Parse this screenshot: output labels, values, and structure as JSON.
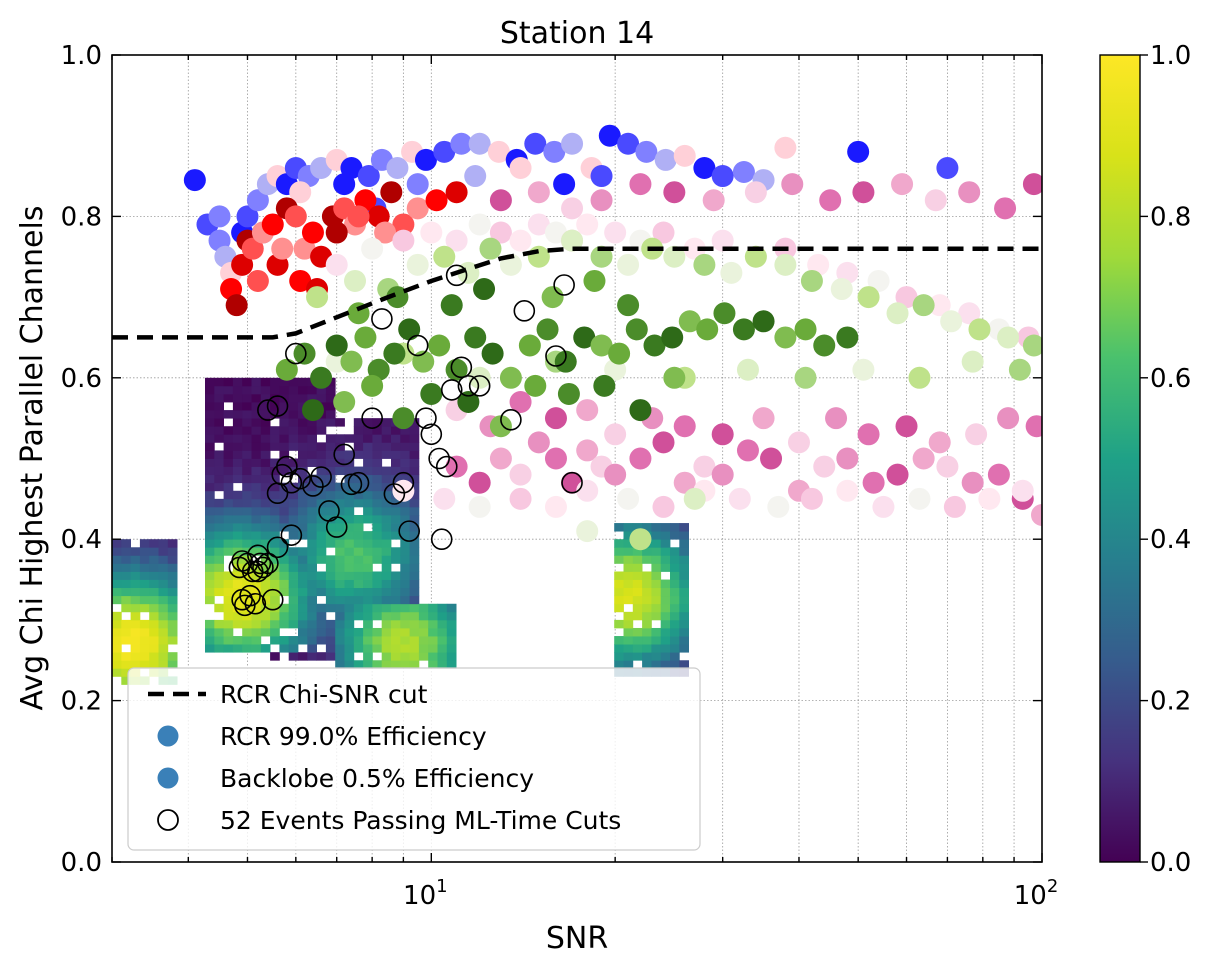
{
  "chart_data": {
    "type": "scatter",
    "title": "Station 14",
    "xlabel": "SNR",
    "ylabel": "Avg Chi Highest Parallel Channels",
    "x_scale": "log",
    "xlim": [
      3,
      100
    ],
    "ylim": [
      0.0,
      1.0
    ],
    "x_tick_labels": [
      {
        "value": 10,
        "base": "10",
        "exp": "1"
      },
      {
        "value": 100,
        "base": "10",
        "exp": "2"
      }
    ],
    "y_ticks": [
      0.0,
      0.2,
      0.4,
      0.6,
      0.8,
      1.0
    ],
    "y_tick_labels": [
      "0.0",
      "0.2",
      "0.4",
      "0.6",
      "0.8",
      "1.0"
    ],
    "grid": true,
    "colorbar": {
      "colormap": "viridis",
      "range": [
        0.0,
        1.0
      ],
      "ticks": [
        0.0,
        0.2,
        0.4,
        0.6,
        0.8,
        1.0
      ],
      "tick_labels": [
        "0.0",
        "0.2",
        "0.4",
        "0.6",
        "0.8",
        "1.0"
      ]
    },
    "legend": {
      "placement": "lower-left",
      "entries": [
        {
          "label": "RCR Chi-SNR cut",
          "marker": "dashed-line",
          "color": "#000000"
        },
        {
          "label": "RCR 99.0% Efficiency",
          "marker": "filled-circle",
          "color": "#3a80b8"
        },
        {
          "label": "Backlobe 0.5% Efficiency",
          "marker": "filled-circle",
          "color": "#3a80b8"
        },
        {
          "label": "52 Events Passing ML-Time Cuts",
          "marker": "open-circle",
          "color": "#000000"
        }
      ]
    },
    "cut_line": {
      "name": "RCR Chi-SNR cut",
      "x": [
        3,
        5.5,
        6.0,
        7.0,
        8.5,
        10,
        11.5,
        13,
        15,
        17,
        20,
        30,
        50,
        100
      ],
      "y": [
        0.65,
        0.65,
        0.655,
        0.675,
        0.7,
        0.72,
        0.735,
        0.748,
        0.757,
        0.76,
        0.76,
        0.76,
        0.76,
        0.76
      ]
    },
    "density_histogram": {
      "description_regions": [
        {
          "snr": [
            3.0,
            3.9
          ],
          "chi": [
            0.22,
            0.4
          ],
          "peak": [
            3.25,
            0.27
          ],
          "level": 0.95
        },
        {
          "snr": [
            4.3,
            7.0
          ],
          "chi": [
            0.26,
            0.6
          ],
          "peak": [
            4.9,
            0.33
          ],
          "level": 0.9
        },
        {
          "snr": [
            5.5,
            9.5
          ],
          "chi": [
            0.25,
            0.55
          ],
          "peak": [
            7.5,
            0.38
          ],
          "level": 0.6
        },
        {
          "snr": [
            7.0,
            11.0
          ],
          "chi": [
            0.24,
            0.32
          ],
          "peak": [
            9.0,
            0.27
          ],
          "level": 0.75
        },
        {
          "snr": [
            20.0,
            26.0
          ],
          "chi": [
            0.23,
            0.42
          ],
          "peak": [
            21.0,
            0.33
          ],
          "level": 0.85
        }
      ]
    },
    "series": [
      {
        "colors": [
          "#1a1aff",
          "#4a4aff",
          "#8080ff",
          "#b0b0f5",
          "#ffd0d8"
        ],
        "x": [
          4.1,
          4.3,
          4.5,
          4.6,
          4.7,
          4.9,
          5.0,
          5.2,
          5.4,
          5.6,
          5.8,
          6.0,
          6.3,
          6.6,
          7.0,
          7.4,
          7.9,
          8.3,
          8.8,
          9.3,
          9.8,
          10.5,
          11.2,
          12.0,
          12.9,
          13.8,
          14.8,
          15.9,
          17.0,
          18.3,
          19.6,
          21.0,
          22.5,
          24.2,
          26.0,
          28.0,
          30.0,
          32.5,
          35.0,
          38.0,
          50.0,
          70.0,
          4.5,
          5.3,
          6.1,
          7.2,
          8.1,
          9.5,
          11.8,
          14.0,
          16.5,
          19.0
        ],
        "y": [
          0.845,
          0.79,
          0.77,
          0.75,
          0.73,
          0.78,
          0.8,
          0.82,
          0.84,
          0.85,
          0.84,
          0.86,
          0.85,
          0.86,
          0.87,
          0.86,
          0.85,
          0.87,
          0.86,
          0.88,
          0.87,
          0.88,
          0.89,
          0.89,
          0.88,
          0.87,
          0.89,
          0.88,
          0.89,
          0.86,
          0.9,
          0.89,
          0.88,
          0.87,
          0.875,
          0.86,
          0.85,
          0.855,
          0.845,
          0.885,
          0.88,
          0.86,
          0.8,
          0.78,
          0.83,
          0.84,
          0.81,
          0.84,
          0.85,
          0.86,
          0.84,
          0.85
        ]
      },
      {
        "colors": [
          "#ff0000",
          "#dd0000",
          "#b00000",
          "#ff5050",
          "#ff9090"
        ],
        "x": [
          4.7,
          4.9,
          5.0,
          5.1,
          5.3,
          5.5,
          5.6,
          5.8,
          6.0,
          6.2,
          6.4,
          6.6,
          6.9,
          7.2,
          7.5,
          7.8,
          8.2,
          8.6,
          9.0,
          9.5,
          10.2,
          11.0,
          4.8,
          5.2,
          5.7,
          6.1,
          6.5,
          7.0,
          7.6,
          8.4
        ],
        "y": [
          0.71,
          0.74,
          0.77,
          0.76,
          0.78,
          0.79,
          0.74,
          0.81,
          0.8,
          0.76,
          0.78,
          0.75,
          0.8,
          0.81,
          0.79,
          0.82,
          0.8,
          0.83,
          0.79,
          0.81,
          0.82,
          0.83,
          0.69,
          0.72,
          0.76,
          0.72,
          0.71,
          0.78,
          0.8,
          0.78
        ]
      },
      {
        "colors": [
          "#e070b0",
          "#d0509a",
          "#f0a8cc",
          "#f8d0e4",
          "#e890c0"
        ],
        "x": [
          11,
          12,
          13,
          14,
          15,
          16,
          17,
          18,
          19,
          20,
          22,
          24,
          26,
          28,
          30,
          33,
          36,
          40,
          44,
          48,
          53,
          58,
          64,
          70,
          77,
          85,
          93,
          100,
          11,
          12.5,
          14,
          16,
          18,
          20,
          23,
          26,
          30,
          35,
          40,
          46,
          52,
          60,
          68,
          78,
          88,
          98,
          13,
          15,
          17,
          19,
          22,
          25,
          29,
          34,
          39,
          45,
          51,
          59,
          67,
          76,
          87,
          97
        ],
        "y": [
          0.49,
          0.47,
          0.5,
          0.48,
          0.52,
          0.5,
          0.47,
          0.51,
          0.49,
          0.48,
          0.5,
          0.52,
          0.47,
          0.49,
          0.48,
          0.51,
          0.5,
          0.46,
          0.49,
          0.5,
          0.47,
          0.48,
          0.5,
          0.49,
          0.47,
          0.48,
          0.45,
          0.43,
          0.56,
          0.54,
          0.57,
          0.55,
          0.56,
          0.53,
          0.55,
          0.54,
          0.53,
          0.55,
          0.52,
          0.55,
          0.53,
          0.54,
          0.52,
          0.53,
          0.55,
          0.54,
          0.82,
          0.83,
          0.81,
          0.82,
          0.84,
          0.83,
          0.82,
          0.83,
          0.84,
          0.82,
          0.83,
          0.84,
          0.82,
          0.83,
          0.81,
          0.84
        ]
      },
      {
        "colors": [
          "#fbe0ee",
          "#f4f4f0",
          "#f8c8e0",
          "#ffe8f0"
        ],
        "x": [
          7,
          8,
          9,
          10,
          11,
          12,
          13,
          14,
          15,
          16,
          17,
          18,
          20,
          22,
          24,
          27,
          30,
          34,
          38,
          43,
          48,
          54,
          60,
          68,
          76,
          85,
          95,
          9,
          10.5,
          12,
          14,
          16,
          18,
          21,
          24,
          28,
          32,
          37,
          42,
          48,
          55,
          63,
          72,
          82,
          93
        ],
        "y": [
          0.74,
          0.76,
          0.77,
          0.78,
          0.77,
          0.79,
          0.78,
          0.77,
          0.79,
          0.78,
          0.77,
          0.79,
          0.78,
          0.77,
          0.78,
          0.76,
          0.77,
          0.75,
          0.76,
          0.74,
          0.73,
          0.72,
          0.7,
          0.69,
          0.68,
          0.66,
          0.65,
          0.46,
          0.45,
          0.44,
          0.45,
          0.44,
          0.46,
          0.45,
          0.44,
          0.46,
          0.45,
          0.44,
          0.45,
          0.46,
          0.44,
          0.45,
          0.44,
          0.45,
          0.46
        ]
      },
      {
        "colors": [
          "#bfe28a",
          "#dcefc4",
          "#a8d680",
          "#eaf3dc"
        ],
        "x": [
          6.5,
          7.5,
          8.5,
          9.5,
          10.5,
          11.5,
          12.5,
          13.5,
          15,
          17,
          19,
          21,
          23,
          25,
          28,
          31,
          34,
          38,
          42,
          47,
          52,
          58,
          64,
          71,
          79,
          88,
          97,
          7,
          9,
          12,
          16,
          20,
          26,
          33,
          41,
          51,
          63,
          77,
          92,
          18,
          22,
          27
        ],
        "y": [
          0.7,
          0.72,
          0.71,
          0.74,
          0.75,
          0.73,
          0.76,
          0.74,
          0.75,
          0.77,
          0.75,
          0.74,
          0.76,
          0.75,
          0.74,
          0.73,
          0.75,
          0.74,
          0.72,
          0.71,
          0.7,
          0.68,
          0.69,
          0.67,
          0.66,
          0.65,
          0.64,
          0.62,
          0.63,
          0.6,
          0.62,
          0.61,
          0.6,
          0.61,
          0.6,
          0.61,
          0.6,
          0.62,
          0.61,
          0.41,
          0.4,
          0.45
        ]
      },
      {
        "colors": [
          "#6aab3a",
          "#4b8c2a",
          "#3a7a20",
          "#2e6a18",
          "#80bc50"
        ],
        "x": [
          5.8,
          6.2,
          6.6,
          7.0,
          7.4,
          7.8,
          8.2,
          8.7,
          9.2,
          9.7,
          10.3,
          11.0,
          11.8,
          12.6,
          13.5,
          14.5,
          15.5,
          16.6,
          17.8,
          19.0,
          20.3,
          21.7,
          23.2,
          24.8,
          26.5,
          28.3,
          30.2,
          32.5,
          35.0,
          38.0,
          41.0,
          44.0,
          48.0,
          6.4,
          7.2,
          8.0,
          9.0,
          10.0,
          11.5,
          13.0,
          14.8,
          16.8,
          19.2,
          22.0,
          25.0,
          7.6,
          8.8,
          10.8,
          12.2,
          15.8,
          18.5,
          21.0
        ],
        "y": [
          0.61,
          0.63,
          0.6,
          0.64,
          0.62,
          0.65,
          0.61,
          0.63,
          0.66,
          0.62,
          0.64,
          0.61,
          0.65,
          0.63,
          0.6,
          0.64,
          0.66,
          0.62,
          0.65,
          0.64,
          0.63,
          0.66,
          0.64,
          0.65,
          0.67,
          0.66,
          0.68,
          0.66,
          0.67,
          0.65,
          0.66,
          0.64,
          0.65,
          0.56,
          0.57,
          0.59,
          0.55,
          0.58,
          0.57,
          0.54,
          0.59,
          0.58,
          0.59,
          0.56,
          0.6,
          0.68,
          0.7,
          0.69,
          0.71,
          0.7,
          0.72,
          0.69
        ]
      },
      {
        "name": "52 Events Passing ML-Time Cuts",
        "x": [
          5.4,
          5.6,
          5.7,
          5.6,
          5.8,
          5.9,
          6.1,
          6.4,
          6.6,
          6.8,
          7.0,
          7.2,
          7.4,
          7.6,
          8.0,
          8.3,
          8.7,
          9.0,
          9.5,
          9.8,
          10.0,
          10.3,
          10.6,
          10.8,
          11.0,
          11.2,
          11.5,
          12.0,
          13.5,
          14.2,
          16.0,
          16.5,
          17.0,
          9.2,
          4.9,
          5.1,
          4.85,
          5.0,
          5.2,
          5.3,
          5.4,
          5.25,
          5.15,
          4.95,
          5.5,
          4.9,
          5.05,
          5.2,
          5.6,
          5.9,
          6.0,
          10.4
        ],
        "y": [
          0.56,
          0.565,
          0.48,
          0.457,
          0.49,
          0.47,
          0.475,
          0.466,
          0.477,
          0.435,
          0.415,
          0.505,
          0.468,
          0.47,
          0.55,
          0.673,
          0.456,
          0.47,
          0.64,
          0.55,
          0.53,
          0.5,
          0.49,
          0.585,
          0.727,
          0.613,
          0.59,
          0.59,
          0.548,
          0.683,
          0.627,
          0.715,
          0.47,
          0.41,
          0.373,
          0.36,
          0.365,
          0.37,
          0.36,
          0.365,
          0.37,
          0.37,
          0.32,
          0.318,
          0.325,
          0.325,
          0.33,
          0.38,
          0.39,
          0.405,
          0.63,
          0.4
        ]
      }
    ]
  }
}
